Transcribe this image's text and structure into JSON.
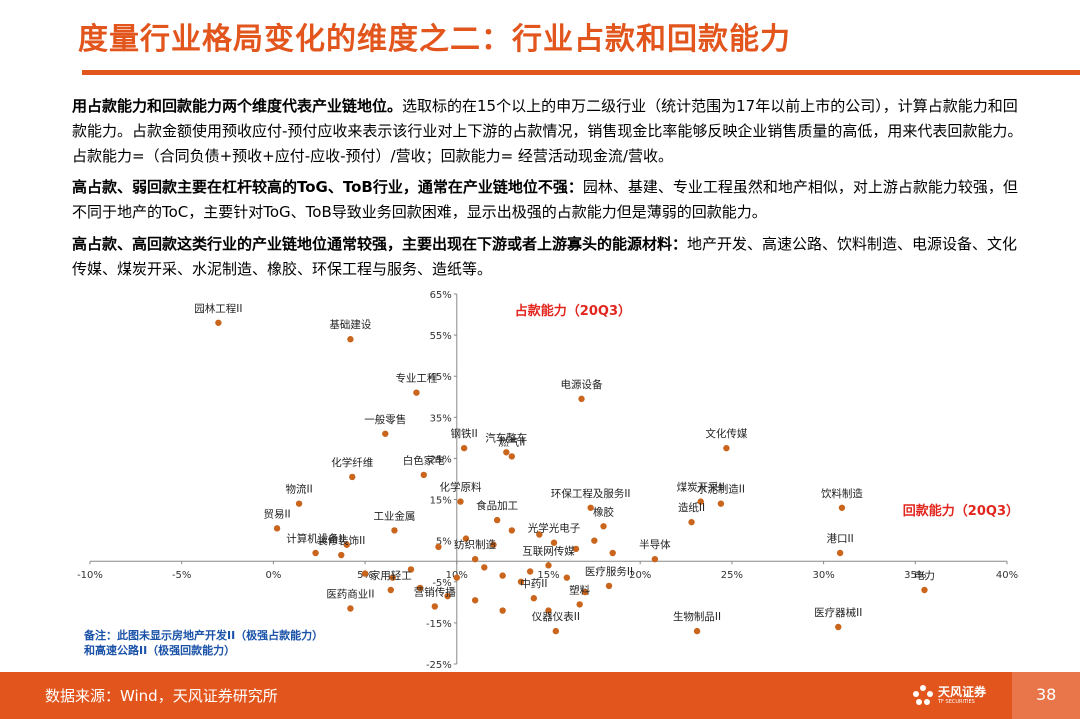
{
  "title": "度量行业格局变化的维度之二：行业占款和回款能力",
  "paragraphs": [
    {
      "bold": "用占款能力和回款能力两个维度代表产业链地位。",
      "text": "选取标的在15个以上的申万二级行业（统计范围为17年以前上市的公司），计算占款能力和回款能力。占款金额使用预收应付-预付应收来表示该行业对上下游的占款情况，销售现金比率能够反映企业销售质量的高低，用来代表回款能力。占款能力=（合同负债+预收+应付-应收-预付）/营收；回款能力= 经营活动现金流/营收。"
    },
    {
      "bold": "高占款、弱回款主要在杠杆较高的ToG、ToB行业，通常在产业链地位不强：",
      "text": "园林、基建、专业工程虽然和地产相似，对上游占款能力较强，但不同于地产的ToC，主要针对ToG、ToB导致业务回款困难，显示出极强的占款能力但是薄弱的回款能力。"
    },
    {
      "bold": "高占款、高回款这类行业的产业链地位通常较强，主要出现在下游或者上游寡头的能源材料：",
      "text": "地产开发、高速公路、饮料制造、电源设备、文化传媒、煤炭开采、水泥制造、橡胶、环保工程与服务、造纸等。"
    }
  ],
  "chart_data": {
    "type": "scatter",
    "ylabel": "占款能力（20Q3）",
    "xlabel": "回款能力（20Q3）",
    "xlim": [
      -10,
      40
    ],
    "ylim": [
      -25,
      65
    ],
    "x_ticks": [
      "-10%",
      "-5%",
      "0%",
      "5%",
      "10%",
      "15%",
      "20%",
      "25%",
      "30%",
      "35%",
      "40%"
    ],
    "y_ticks": [
      "65%",
      "55%",
      "45%",
      "35%",
      "25%",
      "15%",
      "5%",
      "-5%",
      "-15%",
      "-25%"
    ],
    "marker_color": "#C9651C",
    "points": [
      {
        "label": "园林工程II",
        "x": -3.0,
        "y": 58.0
      },
      {
        "label": "基础建设",
        "x": 4.2,
        "y": 54.0
      },
      {
        "label": "专业工程",
        "x": 7.8,
        "y": 41.0
      },
      {
        "label": "一般零售",
        "x": 6.1,
        "y": 31.0
      },
      {
        "label": "钢铁II",
        "x": 10.4,
        "y": 27.5
      },
      {
        "label": "汽车整车",
        "x": 12.7,
        "y": 26.5
      },
      {
        "label": "燃气II",
        "x": 13.0,
        "y": 25.5
      },
      {
        "label": "白色家电",
        "x": 8.2,
        "y": 21.0
      },
      {
        "label": "化学纤维",
        "x": 4.3,
        "y": 20.5
      },
      {
        "label": "电源设备",
        "x": 16.8,
        "y": 39.5
      },
      {
        "label": "文化传媒",
        "x": 24.7,
        "y": 27.5
      },
      {
        "label": "物流II",
        "x": 1.4,
        "y": 14.0
      },
      {
        "label": "贸易II",
        "x": 0.2,
        "y": 8.0
      },
      {
        "label": "化学原料",
        "x": 10.2,
        "y": 14.5
      },
      {
        "label": "工业金属",
        "x": 6.6,
        "y": 7.5
      },
      {
        "label": "食品加工",
        "x": 12.2,
        "y": 10.0
      },
      {
        "label": "橡胶",
        "x": 18.0,
        "y": 8.5
      },
      {
        "label": "环保工程及服务II",
        "x": 17.3,
        "y": 13.0
      },
      {
        "label": "煤炭开采II",
        "x": 23.3,
        "y": 14.5
      },
      {
        "label": "水泥制造II",
        "x": 24.4,
        "y": 14.0
      },
      {
        "label": "造纸II",
        "x": 22.8,
        "y": 9.5
      },
      {
        "label": "饮料制造",
        "x": 31.0,
        "y": 13.0
      },
      {
        "label": "港口II",
        "x": 30.9,
        "y": 2.0
      },
      {
        "label": "电力",
        "x": 35.5,
        "y": -7.0
      },
      {
        "label": "计算机设备II",
        "x": 2.3,
        "y": 2.0
      },
      {
        "label": "装修装饰II",
        "x": 3.7,
        "y": 1.5
      },
      {
        "label": "纺织制造",
        "x": 11.0,
        "y": 0.5
      },
      {
        "label": "光学光电子",
        "x": 15.3,
        "y": 4.5
      },
      {
        "label": "半导体",
        "x": 20.8,
        "y": 0.5
      },
      {
        "label": "互联网传媒",
        "x": 15.0,
        "y": -1.0
      },
      {
        "label": "医疗服务II",
        "x": 18.3,
        "y": -6.0
      },
      {
        "label": "家用轻工",
        "x": 6.4,
        "y": -7.0
      },
      {
        "label": "中药II",
        "x": 14.2,
        "y": -9.0
      },
      {
        "label": "塑料",
        "x": 16.7,
        "y": -10.5
      },
      {
        "label": "医药商业II",
        "x": 4.2,
        "y": -11.5
      },
      {
        "label": "营销传播",
        "x": 8.8,
        "y": -11.0
      },
      {
        "label": "仪器仪表II",
        "x": 15.4,
        "y": -17.0
      },
      {
        "label": "生物制品II",
        "x": 23.1,
        "y": -17.0
      },
      {
        "label": "医疗器械II",
        "x": 30.8,
        "y": -16.0
      }
    ],
    "extra_points": [
      {
        "x": 4.0,
        "y": 4.0
      },
      {
        "x": 9.0,
        "y": 3.5
      },
      {
        "x": 10.5,
        "y": 5.5
      },
      {
        "x": 13.0,
        "y": 7.5
      },
      {
        "x": 14.5,
        "y": 6.5
      },
      {
        "x": 12.0,
        "y": 4.0
      },
      {
        "x": 16.5,
        "y": 3.0
      },
      {
        "x": 17.5,
        "y": 5.0
      },
      {
        "x": 18.5,
        "y": 2.0
      },
      {
        "x": 11.5,
        "y": -1.5
      },
      {
        "x": 12.5,
        "y": -3.5
      },
      {
        "x": 13.5,
        "y": -5.0
      },
      {
        "x": 14.0,
        "y": -2.5
      },
      {
        "x": 16.0,
        "y": -4.0
      },
      {
        "x": 17.0,
        "y": -7.5
      },
      {
        "x": 5.0,
        "y": -3.0
      },
      {
        "x": 6.5,
        "y": -4.0
      },
      {
        "x": 7.5,
        "y": -2.0
      },
      {
        "x": 8.0,
        "y": -6.5
      },
      {
        "x": 9.5,
        "y": -8.5
      },
      {
        "x": 15.0,
        "y": -12.0
      },
      {
        "x": 11.0,
        "y": -9.5
      },
      {
        "x": 12.5,
        "y": -12.0
      },
      {
        "x": 10.0,
        "y": -4.0
      }
    ],
    "note": "备注：此图未显示房地产开发II（极强占款能力）\n和高速公路II（极强回款能力）"
  },
  "footer": {
    "source": "数据来源：Wind，天风证券研究所",
    "logo_cn": "天风证券",
    "logo_en": "TF SECURITIES",
    "page": "38"
  }
}
